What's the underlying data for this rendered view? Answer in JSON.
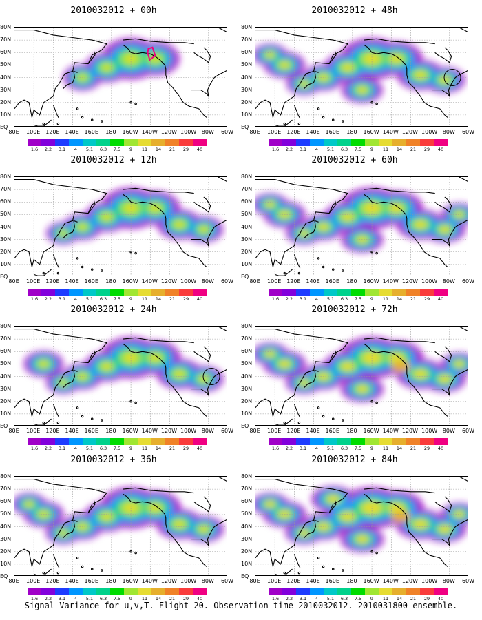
{
  "panels": [
    {
      "title": "2010032012 + 00h",
      "col": 0,
      "row": 0,
      "intensity": 0.55,
      "spread": 0.35
    },
    {
      "title": "2010032012 + 48h",
      "col": 1,
      "row": 0,
      "intensity": 0.75,
      "spread": 0.8
    },
    {
      "title": "2010032012 + 12h",
      "col": 0,
      "row": 1,
      "intensity": 0.6,
      "spread": 0.55
    },
    {
      "title": "2010032012 + 60h",
      "col": 1,
      "row": 1,
      "intensity": 0.8,
      "spread": 0.9
    },
    {
      "title": "2010032012 + 24h",
      "col": 0,
      "row": 2,
      "intensity": 0.65,
      "spread": 0.65
    },
    {
      "title": "2010032012 + 72h",
      "col": 1,
      "row": 2,
      "intensity": 0.85,
      "spread": 0.95
    },
    {
      "title": "2010032012 + 36h",
      "col": 0,
      "row": 3,
      "intensity": 0.7,
      "spread": 0.75
    },
    {
      "title": "2010032012 + 84h",
      "col": 1,
      "row": 3,
      "intensity": 0.9,
      "spread": 1.0
    }
  ],
  "lat_labels": [
    "80N",
    "70N",
    "60N",
    "50N",
    "40N",
    "30N",
    "20N",
    "10N",
    "EQ"
  ],
  "lon_labels": [
    "80E",
    "100E",
    "120E",
    "140E",
    "160E",
    "180",
    "160W",
    "140W",
    "120W",
    "100W",
    "80W",
    "60W"
  ],
  "colorbar": {
    "labels": [
      "1.6",
      "2.2",
      "3.1",
      "4",
      "5.1",
      "6.3",
      "7.5",
      "9",
      "11",
      "14",
      "21",
      "29",
      "40"
    ],
    "colors": [
      "#a000c8",
      "#8200dc",
      "#1e3cff",
      "#0096ff",
      "#00c8c8",
      "#00d28c",
      "#00dc00",
      "#a0e632",
      "#e6dc32",
      "#e6af2d",
      "#f08228",
      "#fa3c3c",
      "#f00082"
    ]
  },
  "footer": "Signal Variance for u,v,T. Flight 20. Observation time 2010032012. 2010031800 ensemble."
}
